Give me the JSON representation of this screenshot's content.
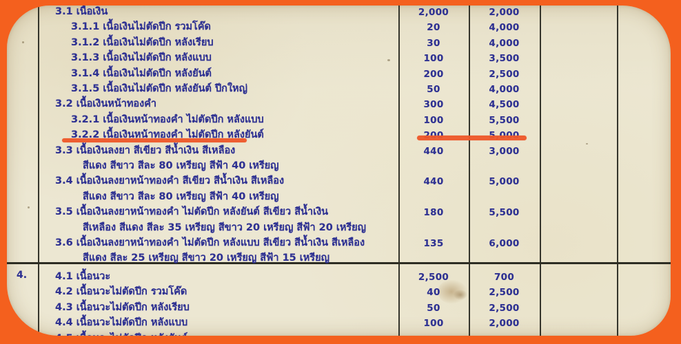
{
  "document": {
    "kind": "scanned-price-table",
    "language": "th",
    "colors": {
      "frame_orange": "#f4601e",
      "marker_orange": "#ef5729",
      "ink_blue": "#2e3192",
      "paper_cream": "#ece7d2",
      "grid_line": "#34342b"
    },
    "highlight_note": "row 3.2.2 underlined in orange marker, both text and its two numbers",
    "sections": [
      {
        "side_label": "",
        "rows": [
          {
            "no": "3.1",
            "text": "เนื้อเงิน",
            "qty": "2,000",
            "price": "2,000"
          },
          {
            "no": "3.1.1",
            "text": "เนื้อเงินไม่ตัดปีก รวมโค๊ด",
            "qty": "20",
            "price": "4,000"
          },
          {
            "no": "3.1.2",
            "text": "เนื้อเงินไม่ตัดปีก หลังเรียบ",
            "qty": "30",
            "price": "4,000"
          },
          {
            "no": "3.1.3",
            "text": "เนื้อเงินไม่ตัดปีก หลังแบบ",
            "qty": "100",
            "price": "3,500"
          },
          {
            "no": "3.1.4",
            "text": "เนื้อเงินไม่ตัดปีก หลังยันต์",
            "qty": "200",
            "price": "2,500"
          },
          {
            "no": "3.1.5",
            "text": "เนื้อเงินไม่ตัดปีก หลังยันต์ ปีกใหญ่",
            "qty": "50",
            "price": "4,000"
          },
          {
            "no": "3.2",
            "text": "เนื้อเงินหน้าทองคำ",
            "qty": "300",
            "price": "4,500"
          },
          {
            "no": "3.2.1",
            "text": "เนื้อเงินหน้าทองคำ ไม่ตัดปีก หลังแบบ",
            "qty": "100",
            "price": "5,500"
          },
          {
            "no": "3.2.2",
            "text": "เนื้อเงินหน้าทองคำ ไม่ตัดปีก หลังยันต์",
            "qty": "200",
            "price": "5,000",
            "highlighted": true
          },
          {
            "no": "3.3",
            "text": "เนื้อเงินลงยา สีเขียว สีน้ำเงิน สีเหลือง",
            "text2": "สีแดง สีขาว สีละ 80 เหรียญ สีฟ้า 40 เหรียญ",
            "qty": "440",
            "price": "3,000"
          },
          {
            "no": "3.4",
            "text": "เนื้อเงินลงยาหน้าทองคำ สีเขียว สีน้ำเงิน สีเหลือง",
            "text2": "สีแดง สีขาว สีละ 80 เหรียญ สีฟ้า 40 เหรียญ",
            "qty": "440",
            "price": "5,000"
          },
          {
            "no": "3.5",
            "text": "เนื้อเงินลงยาหน้าทองคำ ไม่ตัดปีก หลังยันต์ สีเขียว สีน้ำเงิน",
            "text2": "สีเหลือง สีแดง สีละ 35 เหรียญ สีขาว 20 เหรียญ สีฟ้า 20 เหรียญ",
            "qty": "180",
            "price": "5,500"
          },
          {
            "no": "3.6",
            "text": "เนื้อเงินลงยาหน้าทองคำ ไม่ตัดปีก หลังแบบ สีเขียว สีน้ำเงิน สีเหลือง",
            "text2": "สีแดง สีละ 25 เหรียญ สีขาว 20 เหรียญ สีฟ้า 15 เหรียญ",
            "qty": "135",
            "price": "6,000"
          }
        ]
      },
      {
        "side_label": "4.",
        "rows": [
          {
            "no": "4.1",
            "text": "เนื้อนวะ",
            "qty": "2,500",
            "price": "700"
          },
          {
            "no": "4.2",
            "text": "เนื้อนวะไม่ตัดปีก รวมโค๊ด",
            "qty": "40",
            "price": "2,500"
          },
          {
            "no": "4.3",
            "text": "เนื้อนวะไม่ตัดปีก หลังเรียบ",
            "qty": "50",
            "price": "2,500"
          },
          {
            "no": "4.4",
            "text": "เนื้อนวะไม่ตัดปีก หลังแบบ",
            "qty": "100",
            "price": "2,000"
          },
          {
            "no": "4.5",
            "text": "เนื้อนวะไม่ตัดปีก หลังยันต์",
            "qty": "",
            "price": "",
            "cropped": true
          }
        ]
      }
    ]
  }
}
